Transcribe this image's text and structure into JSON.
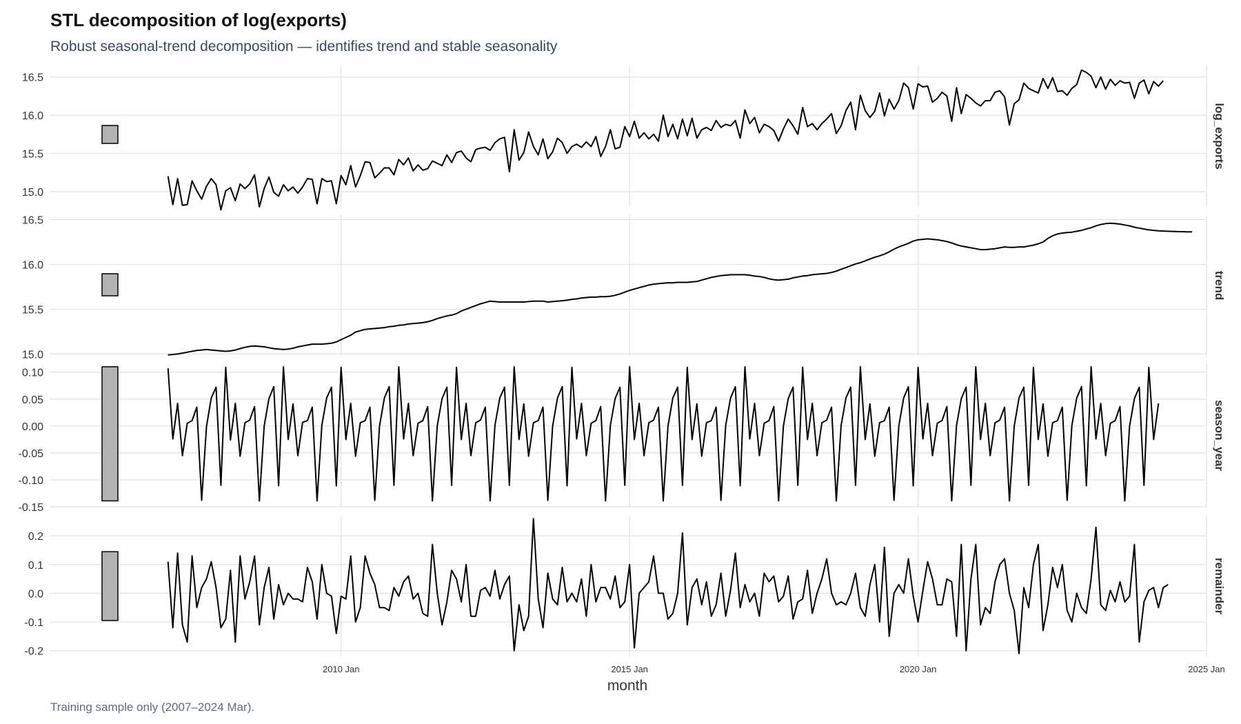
{
  "title": "STL decomposition of log(exports)",
  "subtitle": "Robust seasonal-trend decomposition — identifies trend and stable seasonality",
  "caption": "Training sample only (2007–2024 Mar).",
  "colors": {
    "line": "#000000",
    "grid": "#dde1ea",
    "range_bar": "#b3b3b3",
    "tick_text": "#333333"
  },
  "chart_data": {
    "type": "line",
    "xlabel": "month",
    "x_start": "2007 Jan",
    "x_end": "2024 Mar",
    "x_ticks": [
      "2010 Jan",
      "2015 Jan",
      "2020 Jan",
      "2025 Jan"
    ],
    "x_range": [
      "2006 Jan",
      "2025 Jan"
    ],
    "grid": true,
    "panels": [
      {
        "name": "log_exports",
        "ylim": [
          14.8,
          16.65
        ],
        "yticks": [
          "15.0",
          "15.5",
          "16.0",
          "16.5"
        ],
        "values": [
          15.2,
          14.83,
          15.17,
          14.82,
          14.83,
          15.14,
          15.01,
          14.9,
          15.07,
          15.17,
          15.09,
          14.76,
          15.01,
          15.05,
          14.88,
          15.1,
          15.04,
          15.1,
          15.22,
          14.8,
          15.04,
          15.19,
          14.99,
          14.94,
          15.09,
          15.01,
          15.06,
          14.98,
          15.06,
          15.17,
          15.16,
          14.84,
          15.17,
          15.13,
          15.14,
          14.84,
          15.21,
          15.09,
          15.34,
          15.06,
          15.21,
          15.39,
          15.38,
          15.18,
          15.24,
          15.31,
          15.31,
          15.22,
          15.42,
          15.35,
          15.44,
          15.27,
          15.35,
          15.28,
          15.3,
          15.4,
          15.37,
          15.34,
          15.48,
          15.38,
          15.51,
          15.53,
          15.44,
          15.39,
          15.55,
          15.57,
          15.58,
          15.54,
          15.64,
          15.69,
          15.71,
          15.26,
          15.81,
          15.41,
          15.51,
          15.78,
          15.59,
          15.48,
          15.69,
          15.43,
          15.52,
          15.7,
          15.64,
          15.5,
          15.59,
          15.62,
          15.58,
          15.65,
          15.59,
          15.72,
          15.46,
          15.59,
          15.81,
          15.56,
          15.58,
          15.85,
          15.72,
          15.92,
          15.7,
          15.77,
          15.69,
          15.75,
          15.66,
          16.0,
          15.72,
          15.88,
          15.69,
          15.95,
          15.73,
          15.96,
          15.7,
          15.81,
          15.84,
          15.8,
          15.93,
          15.84,
          15.88,
          15.86,
          15.93,
          15.7,
          16.07,
          15.89,
          15.97,
          15.77,
          15.88,
          15.85,
          15.8,
          15.66,
          15.82,
          15.95,
          15.86,
          15.75,
          16.1,
          15.85,
          15.89,
          15.81,
          15.89,
          15.95,
          16.02,
          15.76,
          15.86,
          16.06,
          16.17,
          15.81,
          16.26,
          16.06,
          15.97,
          16.05,
          16.29,
          15.99,
          16.21,
          16.08,
          16.19,
          16.42,
          16.36,
          16.08,
          16.41,
          16.37,
          16.38,
          16.17,
          16.22,
          16.3,
          16.25,
          15.92,
          16.36,
          16.02,
          16.27,
          16.22,
          16.16,
          16.12,
          16.19,
          16.19,
          16.3,
          16.32,
          16.24,
          15.87,
          16.15,
          16.2,
          16.42,
          16.35,
          16.32,
          16.29,
          16.48,
          16.35,
          16.49,
          16.31,
          16.32,
          16.26,
          16.35,
          16.4,
          16.59,
          16.56,
          16.51,
          16.36,
          16.5,
          16.34,
          16.47,
          16.39,
          16.45,
          16.42,
          16.43,
          16.22,
          16.42,
          16.46,
          16.28,
          16.44,
          16.38,
          16.45
        ]
      },
      {
        "name": "trend",
        "ylim": [
          14.98,
          16.55
        ],
        "yticks": [
          "15.0",
          "15.5",
          "16.0",
          "16.5"
        ],
        "values": [
          14.99,
          14.995,
          15.0,
          15.01,
          15.02,
          15.03,
          15.04,
          15.045,
          15.05,
          15.045,
          15.04,
          15.035,
          15.03,
          15.035,
          15.045,
          15.06,
          15.075,
          15.085,
          15.09,
          15.085,
          15.08,
          15.07,
          15.06,
          15.055,
          15.05,
          15.055,
          15.065,
          15.08,
          15.09,
          15.1,
          15.11,
          15.11,
          15.11,
          15.115,
          15.12,
          15.135,
          15.16,
          15.185,
          15.21,
          15.245,
          15.26,
          15.275,
          15.28,
          15.285,
          15.29,
          15.295,
          15.305,
          15.31,
          15.32,
          15.325,
          15.335,
          15.34,
          15.345,
          15.35,
          15.36,
          15.375,
          15.395,
          15.41,
          15.425,
          15.435,
          15.45,
          15.48,
          15.5,
          15.52,
          15.54,
          15.56,
          15.575,
          15.59,
          15.585,
          15.58,
          15.58,
          15.58,
          15.58,
          15.58,
          15.58,
          15.585,
          15.59,
          15.59,
          15.59,
          15.58,
          15.585,
          15.59,
          15.595,
          15.6,
          15.61,
          15.615,
          15.625,
          15.63,
          15.635,
          15.635,
          15.64,
          15.64,
          15.645,
          15.655,
          15.67,
          15.69,
          15.71,
          15.725,
          15.74,
          15.755,
          15.77,
          15.78,
          15.785,
          15.79,
          15.795,
          15.795,
          15.8,
          15.8,
          15.8,
          15.805,
          15.81,
          15.825,
          15.84,
          15.855,
          15.865,
          15.875,
          15.88,
          15.885,
          15.885,
          15.885,
          15.885,
          15.88,
          15.87,
          15.865,
          15.855,
          15.84,
          15.83,
          15.825,
          15.83,
          15.835,
          15.85,
          15.86,
          15.87,
          15.875,
          15.885,
          15.89,
          15.895,
          15.9,
          15.91,
          15.925,
          15.945,
          15.965,
          15.985,
          16.005,
          16.02,
          16.04,
          16.06,
          16.08,
          16.095,
          16.115,
          16.14,
          16.17,
          16.195,
          16.215,
          16.235,
          16.26,
          16.275,
          16.28,
          16.285,
          16.28,
          16.275,
          16.265,
          16.255,
          16.24,
          16.22,
          16.205,
          16.195,
          16.185,
          16.175,
          16.165,
          16.165,
          16.17,
          16.175,
          16.185,
          16.195,
          16.19,
          16.19,
          16.195,
          16.195,
          16.205,
          16.215,
          16.23,
          16.25,
          16.29,
          16.32,
          16.34,
          16.35,
          16.355,
          16.36,
          16.37,
          16.38,
          16.395,
          16.41,
          16.43,
          16.445,
          16.455,
          16.46,
          16.455,
          16.45,
          16.44,
          16.43,
          16.415,
          16.405,
          16.395,
          16.385,
          16.38,
          16.375,
          16.372,
          16.37,
          16.368,
          16.366,
          16.365,
          16.364,
          16.363
        ]
      },
      {
        "name": "season_year",
        "ylim": [
          -0.15,
          0.115
        ],
        "yticks": [
          "0.10",
          "0.05",
          "0.00",
          "-0.05",
          "-0.10",
          "-0.15"
        ],
        "values": [
          0.107,
          -0.024,
          0.042,
          -0.055,
          0.005,
          0.01,
          0.035,
          -0.138,
          -0.001,
          0.052,
          0.072,
          -0.11,
          0.109,
          -0.026,
          0.042,
          -0.056,
          0.006,
          0.011,
          0.036,
          -0.139,
          0.0,
          0.051,
          0.073,
          -0.111,
          0.11,
          -0.025,
          0.041,
          -0.055,
          0.007,
          0.01,
          0.035,
          -0.139,
          0.001,
          0.052,
          0.072,
          -0.111,
          0.109,
          -0.025,
          0.042,
          -0.056,
          0.006,
          0.01,
          0.035,
          -0.138,
          0.0,
          0.052,
          0.073,
          -0.11,
          0.11,
          -0.024,
          0.042,
          -0.055,
          0.005,
          0.01,
          0.036,
          -0.139,
          0.0,
          0.051,
          0.072,
          -0.11,
          0.109,
          -0.025,
          0.042,
          -0.055,
          0.006,
          0.011,
          0.035,
          -0.139,
          0.001,
          0.052,
          0.072,
          -0.11,
          0.11,
          -0.025,
          0.041,
          -0.056,
          0.006,
          0.01,
          0.035,
          -0.138,
          0.0,
          0.052,
          0.073,
          -0.111,
          0.109,
          -0.024,
          0.042,
          -0.055,
          0.005,
          0.01,
          0.036,
          -0.139,
          0.001,
          0.051,
          0.072,
          -0.11,
          0.11,
          -0.025,
          0.042,
          -0.055,
          0.006,
          0.011,
          0.035,
          -0.139,
          0.0,
          0.052,
          0.072,
          -0.11,
          0.109,
          -0.025,
          0.041,
          -0.056,
          0.006,
          0.01,
          0.035,
          -0.138,
          0.001,
          0.052,
          0.073,
          -0.111,
          0.11,
          -0.024,
          0.042,
          -0.055,
          0.005,
          0.01,
          0.036,
          -0.139,
          0.0,
          0.051,
          0.072,
          -0.11,
          0.109,
          -0.025,
          0.042,
          -0.055,
          0.006,
          0.011,
          0.035,
          -0.139,
          0.001,
          0.052,
          0.072,
          -0.11,
          0.11,
          -0.025,
          0.041,
          -0.056,
          0.006,
          0.01,
          0.035,
          -0.138,
          0.0,
          0.052,
          0.073,
          -0.111,
          0.109,
          -0.024,
          0.042,
          -0.055,
          0.005,
          0.01,
          0.036,
          -0.139,
          0.001,
          0.051,
          0.072,
          -0.11,
          0.11,
          -0.025,
          0.042,
          -0.055,
          0.006,
          0.011,
          0.035,
          -0.139,
          0.0,
          0.052,
          0.072,
          -0.11,
          0.109,
          -0.025,
          0.041,
          -0.056,
          0.006,
          0.01,
          0.035,
          -0.138,
          0.001,
          0.052,
          0.073,
          -0.111,
          0.11,
          -0.024,
          0.042,
          -0.055,
          0.005,
          0.01,
          0.036,
          -0.139,
          0.0,
          0.051,
          0.072,
          -0.11,
          0.109,
          -0.025,
          0.042
        ]
      },
      {
        "name": "remainder",
        "ylim": [
          -0.22,
          0.27
        ],
        "yticks": [
          "0.2",
          "0.1",
          "0.0",
          "-0.1",
          "-0.2"
        ],
        "values": [
          0.11,
          -0.12,
          0.14,
          -0.11,
          -0.17,
          0.13,
          -0.05,
          0.02,
          0.05,
          0.11,
          0.02,
          -0.12,
          -0.09,
          0.08,
          -0.17,
          0.13,
          -0.02,
          0.04,
          0.13,
          -0.11,
          0.02,
          0.09,
          -0.09,
          0.03,
          -0.04,
          0.0,
          -0.02,
          -0.02,
          -0.03,
          0.09,
          0.04,
          -0.09,
          0.1,
          0.0,
          -0.01,
          -0.14,
          -0.01,
          -0.02,
          0.13,
          -0.1,
          -0.05,
          0.13,
          0.07,
          0.03,
          -0.05,
          -0.05,
          -0.06,
          0.02,
          -0.01,
          0.04,
          0.06,
          -0.02,
          0.0,
          -0.07,
          -0.08,
          0.17,
          0.0,
          -0.11,
          -0.03,
          0.08,
          0.05,
          -0.03,
          0.1,
          -0.08,
          -0.08,
          0.01,
          0.02,
          -0.01,
          0.08,
          -0.02,
          0.03,
          0.06,
          -0.2,
          -0.04,
          -0.13,
          -0.08,
          0.26,
          -0.02,
          -0.12,
          0.07,
          -0.02,
          -0.04,
          0.09,
          -0.03,
          0.0,
          -0.03,
          0.05,
          -0.08,
          0.1,
          -0.03,
          0.02,
          0.02,
          -0.02,
          0.06,
          -0.05,
          -0.03,
          0.1,
          -0.19,
          0.0,
          0.02,
          0.04,
          0.13,
          0.0,
          0.0,
          -0.09,
          -0.07,
          0.0,
          0.21,
          -0.11,
          0.02,
          0.05,
          -0.04,
          0.04,
          -0.08,
          -0.04,
          0.07,
          -0.08,
          0.01,
          0.14,
          -0.05,
          0.03,
          -0.03,
          0.0,
          -0.08,
          0.07,
          0.04,
          0.06,
          -0.03,
          -0.01,
          0.06,
          -0.09,
          -0.03,
          -0.02,
          0.08,
          -0.07,
          0.0,
          0.05,
          0.12,
          0.0,
          -0.04,
          -0.03,
          -0.04,
          0.0,
          0.07,
          -0.05,
          -0.08,
          0.03,
          0.1,
          -0.1,
          0.16,
          -0.15,
          0.0,
          0.03,
          0.0,
          0.12,
          -0.01,
          -0.1,
          0.01,
          0.11,
          0.05,
          -0.04,
          -0.04,
          0.05,
          0.04,
          -0.15,
          0.17,
          -0.2,
          0.05,
          0.17,
          -0.11,
          -0.05,
          -0.07,
          0.04,
          0.1,
          0.12,
          0.0,
          -0.06,
          -0.21,
          0.02,
          -0.05,
          0.1,
          0.17,
          -0.13,
          -0.04,
          0.09,
          0.02,
          0.1,
          -0.06,
          -0.1,
          0.0,
          -0.05,
          -0.07,
          0.05,
          0.23,
          -0.04,
          -0.06,
          0.01,
          -0.03,
          0.04,
          -0.03,
          -0.01,
          0.17,
          -0.17,
          -0.03,
          0.01,
          0.02,
          -0.05,
          0.02,
          0.03
        ]
      }
    ]
  }
}
